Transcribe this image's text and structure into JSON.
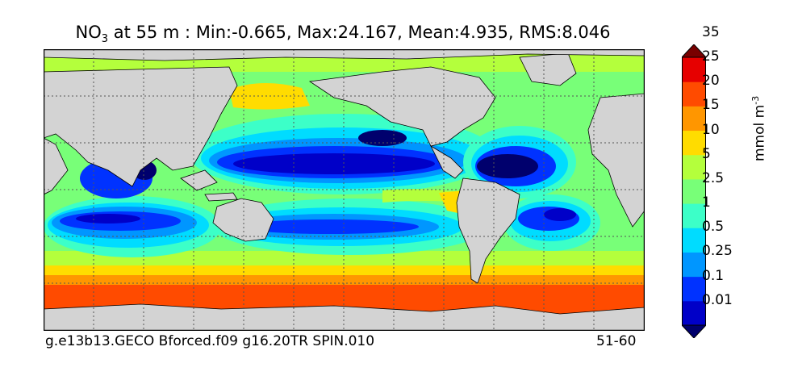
{
  "title": {
    "prefix": "NO",
    "subscript": "3",
    "text": " at 55 m : Min:-0.665, Max:24.167, Mean:4.935, RMS:8.046"
  },
  "footer": {
    "case_name": "g.e13b13.GECO Bforced.f09 g16.20TR SPIN.010",
    "years": "51-60"
  },
  "colorbar": {
    "unit": "mmol m",
    "unit_exponent": "-3",
    "labels": [
      "0.01",
      "0.1",
      "0.25",
      "0.5",
      "1",
      "2.5",
      "5",
      "10",
      "15",
      "20",
      "25",
      "35"
    ],
    "colors": [
      "#00006d",
      "#0000c8",
      "#0032ff",
      "#0096ff",
      "#00dcff",
      "#3cffc8",
      "#78ff78",
      "#b4ff3c",
      "#ffdc00",
      "#ff9600",
      "#ff4b00",
      "#e60000",
      "#780000"
    ],
    "extend": "both"
  },
  "map": {
    "land_color": "#d3d3d3",
    "projection": "cylindrical",
    "gridlines": "dotted"
  }
}
